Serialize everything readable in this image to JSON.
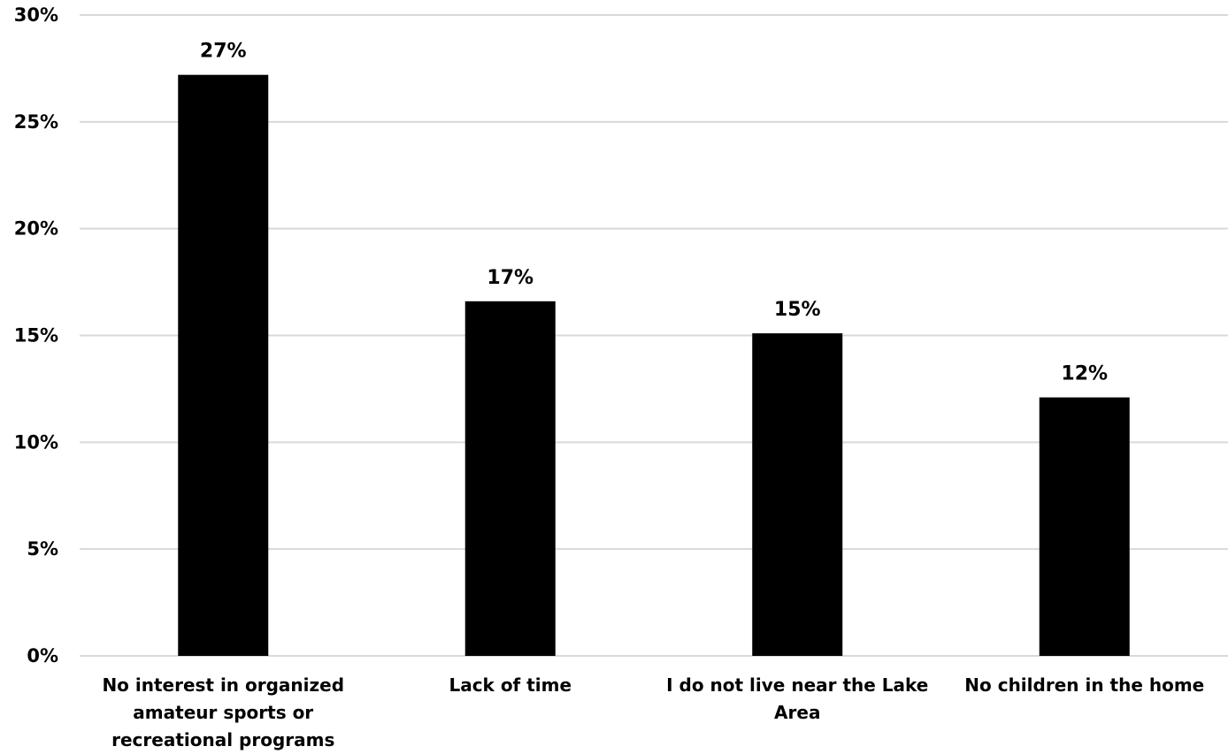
{
  "chart_data": {
    "type": "bar",
    "categories": [
      "No interest in organized amateur sports or recreational programs",
      "Lack of time",
      "I do not live near the Lake Area",
      "No children in the home"
    ],
    "category_lines": [
      [
        "No interest in organized",
        "amateur sports or",
        "recreational programs"
      ],
      [
        "Lack of time"
      ],
      [
        "I do not live near the Lake",
        "Area"
      ],
      [
        "No children in the home"
      ]
    ],
    "values": [
      27.2,
      16.6,
      15.1,
      12.1
    ],
    "data_labels": [
      "27%",
      "17%",
      "15%",
      "12%"
    ],
    "ylim": [
      0,
      30
    ],
    "yticks": [
      0,
      5,
      10,
      15,
      20,
      25,
      30
    ],
    "ytick_labels": [
      "0%",
      "5%",
      "10%",
      "15%",
      "20%",
      "25%",
      "30%"
    ],
    "title": "",
    "xlabel": "",
    "ylabel": "",
    "grid": true,
    "legend": "none",
    "bar_color": "#000000",
    "grid_color": "#d9d9d9"
  }
}
